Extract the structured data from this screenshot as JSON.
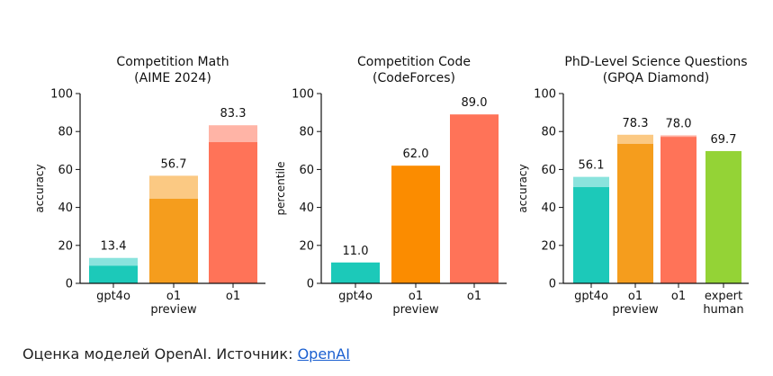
{
  "chart_data": [
    {
      "type": "bar",
      "title": [
        "Competition Math",
        "(AIME 2024)"
      ],
      "ylabel": "accuracy",
      "ylim": [
        0,
        100
      ],
      "yticks": [
        0,
        20,
        40,
        60,
        80,
        100
      ],
      "categories": [
        [
          "gpt4o"
        ],
        [
          "o1",
          "preview"
        ],
        [
          "o1"
        ]
      ],
      "values": [
        13.4,
        56.7,
        83.3
      ],
      "solid_values": [
        9.3,
        44.6,
        74.4
      ],
      "value_labels": [
        "13.4",
        "56.7",
        "83.3"
      ],
      "colors": [
        "#1cc9b9",
        "#f59d1d",
        "#ff7358"
      ],
      "light_colors": [
        "#8ae3dd",
        "#fbc983",
        "#ffb4a6"
      ]
    },
    {
      "type": "bar",
      "title": [
        "Competition Code",
        "(CodeForces)"
      ],
      "ylabel": "percentile",
      "ylim": [
        0,
        100
      ],
      "yticks": [
        0,
        20,
        40,
        60,
        80,
        100
      ],
      "categories": [
        [
          "gpt4o"
        ],
        [
          "o1",
          "preview"
        ],
        [
          "o1"
        ]
      ],
      "values": [
        11.0,
        62.0,
        89.0
      ],
      "solid_values": [
        11.0,
        62.0,
        89.0
      ],
      "value_labels": [
        "11.0",
        "62.0",
        "89.0"
      ],
      "colors": [
        "#1cc9b9",
        "#fb8c00",
        "#ff7358"
      ],
      "light_colors": [
        "#1cc9b9",
        "#fb8c00",
        "#ff7358"
      ]
    },
    {
      "type": "bar",
      "title": [
        "PhD-Level Science Questions",
        "(GPQA Diamond)"
      ],
      "ylabel": "accuracy",
      "ylim": [
        0,
        100
      ],
      "yticks": [
        0,
        20,
        40,
        60,
        80,
        100
      ],
      "categories": [
        [
          "gpt4o"
        ],
        [
          "o1",
          "preview"
        ],
        [
          "o1"
        ],
        [
          "expert",
          "human"
        ]
      ],
      "values": [
        56.1,
        78.3,
        78.0,
        69.7
      ],
      "solid_values": [
        50.7,
        73.5,
        77.2,
        69.7
      ],
      "value_labels": [
        "56.1",
        "78.3",
        "78.0",
        "69.7"
      ],
      "colors": [
        "#1cc9b9",
        "#f59d1d",
        "#ff7358",
        "#94d336"
      ],
      "light_colors": [
        "#8ae3dd",
        "#fbc983",
        "#ffb4a6",
        "#94d336"
      ]
    }
  ],
  "caption": {
    "text": "Оценка моделей OpenAI. Источник: ",
    "link": "OpenAI"
  }
}
